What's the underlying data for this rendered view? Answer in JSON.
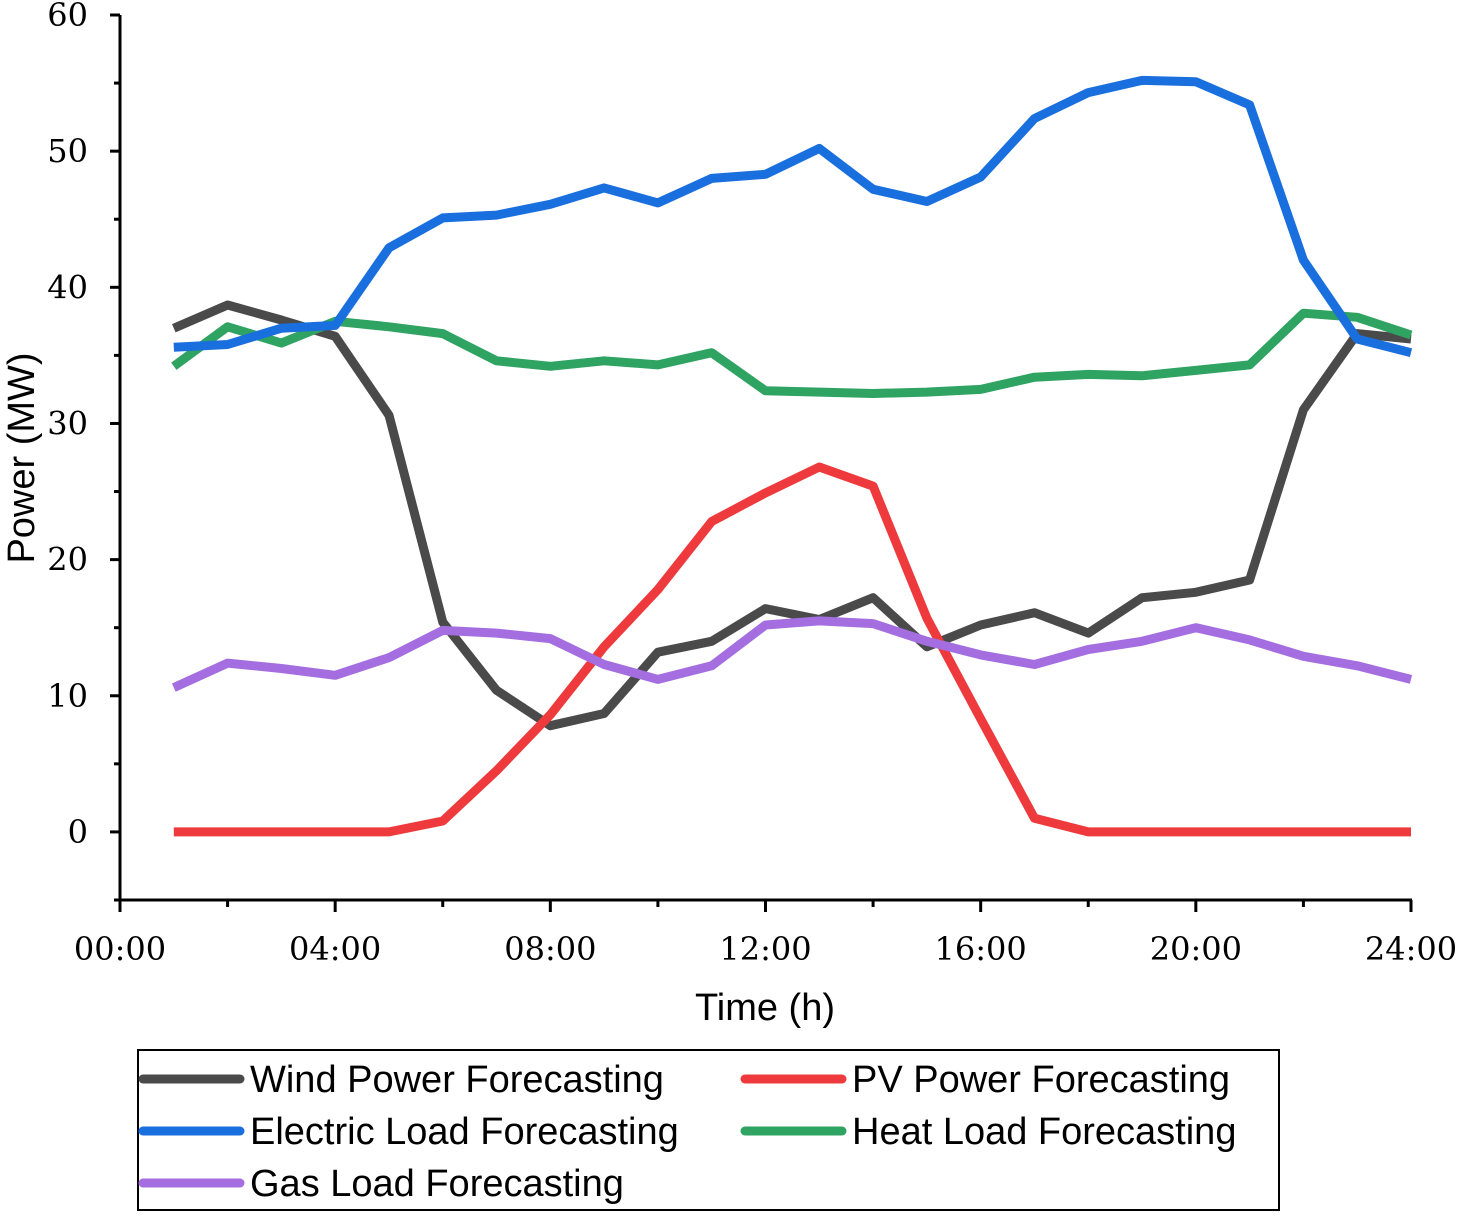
{
  "chart_data": {
    "type": "line",
    "title": "",
    "xlabel": "Time (h)",
    "ylabel": "Power (MW)",
    "xlim": [
      0,
      24
    ],
    "ylim": [
      -5,
      60
    ],
    "xticks": [
      0,
      4,
      8,
      12,
      16,
      20,
      24
    ],
    "xtick_labels": [
      "00:00",
      "04:00",
      "08:00",
      "12:00",
      "16:00",
      "20:00",
      "24:00"
    ],
    "yticks": [
      0,
      10,
      20,
      30,
      40,
      50,
      60
    ],
    "ytick_labels": [
      "0",
      "10",
      "20",
      "30",
      "40",
      "50",
      "60"
    ],
    "grid": false,
    "legend_placement": "bottom",
    "x": [
      1,
      2,
      3,
      4,
      5,
      6,
      7,
      8,
      9,
      10,
      11,
      12,
      13,
      14,
      15,
      16,
      17,
      18,
      19,
      20,
      21,
      22,
      23,
      24
    ],
    "series": [
      {
        "name": "Wind Power Forecasting",
        "color": "#4a4a4a",
        "values": [
          37.0,
          38.7,
          37.6,
          36.4,
          30.6,
          15.4,
          10.4,
          7.8,
          8.7,
          13.2,
          14.0,
          16.4,
          15.6,
          17.2,
          13.6,
          15.2,
          16.1,
          14.6,
          17.2,
          17.6,
          18.5,
          31.0,
          36.6,
          36.2
        ]
      },
      {
        "name": "PV Power Forecasting",
        "color": "#ee3a3c",
        "values": [
          0,
          0,
          0,
          0,
          0,
          0.8,
          4.5,
          8.6,
          13.6,
          17.8,
          22.8,
          24.9,
          26.8,
          25.4,
          15.7,
          8.3,
          1.0,
          0,
          0,
          0,
          0,
          0,
          0,
          0
        ]
      },
      {
        "name": "Electric Load Forecasting",
        "color": "#1a6fdf",
        "values": [
          35.6,
          35.8,
          37.0,
          37.2,
          42.9,
          45.1,
          45.3,
          46.1,
          47.3,
          46.2,
          48.0,
          48.3,
          50.2,
          47.2,
          46.3,
          48.1,
          52.4,
          54.3,
          55.2,
          55.1,
          53.4,
          42.0,
          36.2,
          35.2
        ]
      },
      {
        "name": "Heat Load Forecasting",
        "color": "#2ea362",
        "values": [
          34.2,
          37.1,
          35.9,
          37.5,
          37.1,
          36.6,
          34.6,
          34.2,
          34.6,
          34.3,
          35.2,
          32.4,
          32.3,
          32.2,
          32.3,
          32.5,
          33.4,
          33.6,
          33.5,
          33.9,
          34.3,
          38.1,
          37.8,
          36.5
        ]
      },
      {
        "name": "Gas Load Forecasting",
        "color": "#a46ee0",
        "values": [
          10.6,
          12.4,
          12.0,
          11.5,
          12.8,
          14.8,
          14.6,
          14.2,
          12.3,
          11.2,
          12.2,
          15.2,
          15.5,
          15.3,
          14.0,
          13.0,
          12.3,
          13.4,
          14.0,
          15.0,
          14.1,
          12.9,
          12.2,
          11.2
        ]
      }
    ]
  }
}
